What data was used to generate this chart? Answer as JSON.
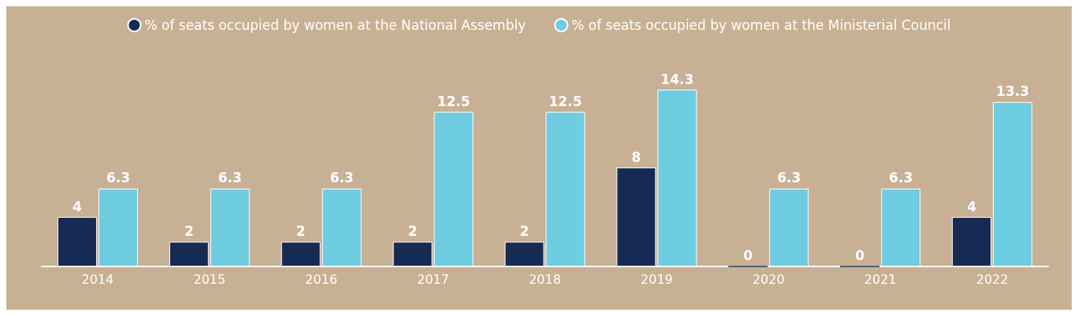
{
  "chart_data": {
    "type": "bar",
    "categories": [
      "2014",
      "2015",
      "2016",
      "2017",
      "2018",
      "2019",
      "2020",
      "2021",
      "2022"
    ],
    "series": [
      {
        "name": "% of seats occupied by women at the National Assembly",
        "color": "#172a53",
        "values": [
          4,
          2,
          2,
          2,
          2,
          8,
          0,
          0,
          4
        ]
      },
      {
        "name": "% of seats occupied by women at the Ministerial Council",
        "color": "#6ecde0",
        "values": [
          6.3,
          6.3,
          6.3,
          12.5,
          12.5,
          14.3,
          6.3,
          6.3,
          13.3
        ]
      }
    ],
    "data_labels": true,
    "legend": "top"
  }
}
